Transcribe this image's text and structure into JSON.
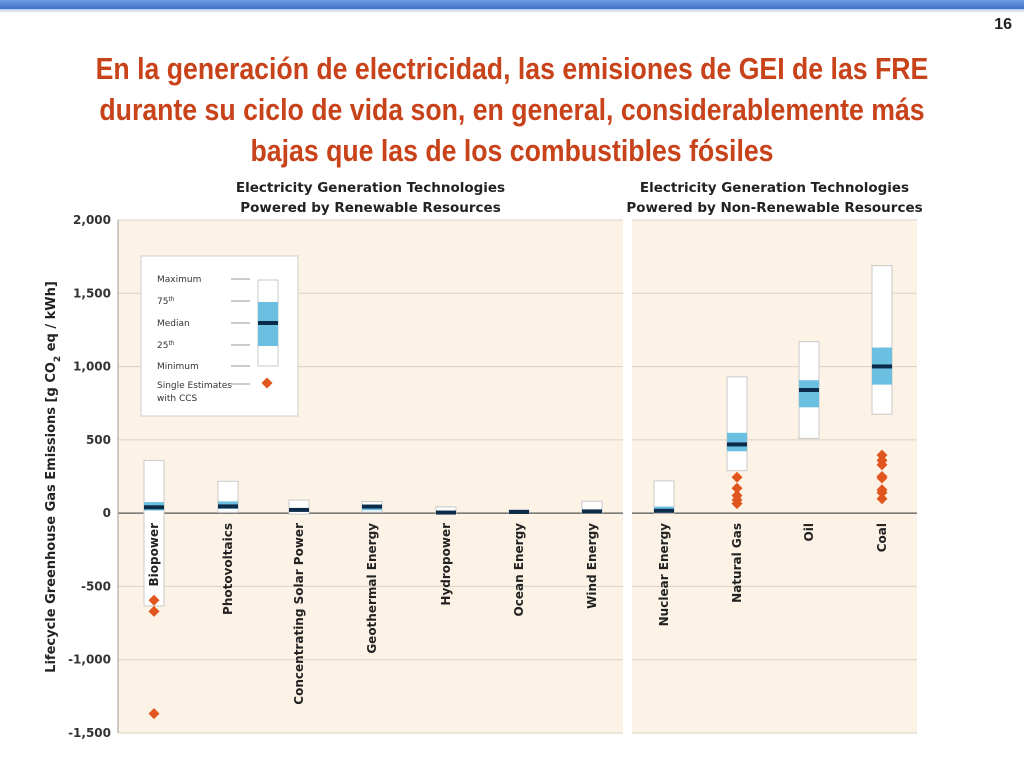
{
  "slide": {
    "number": "16",
    "title": "En la generación de electricidad, las emisiones de GEI de las FRE durante su ciclo de vida son, en general, considerablemente más bajas que las de los combustibles fósiles"
  },
  "colors": {
    "accent": "#c8421a",
    "panel_background": "#fdf2e6",
    "iqr_box": "#6bbfe0",
    "median": "#0c2b48",
    "ccs_marker": "#e0561e"
  },
  "chart_data": {
    "type": "boxplot",
    "ylabel": "Lifecycle Greenhouse Gas Emissions [g CO2 eq / kWh]",
    "ylim": [
      -1500,
      2000
    ],
    "yticks": [
      "2,000",
      "1,500",
      "1,000",
      "500",
      "0",
      "-500",
      "-1,000",
      "-1,500"
    ],
    "yticks_values": [
      2000,
      1500,
      1000,
      500,
      0,
      -500,
      -1000,
      -1500
    ],
    "grid": true,
    "panels": [
      {
        "title_lines": [
          "Electricity Generation Technologies",
          "Powered by Renewable Resources"
        ],
        "categories": [
          {
            "name": "Biopower",
            "min": -633,
            "q1": 18,
            "median": 40,
            "q3": 75,
            "max": 360,
            "ccs_estimates": [
              -594,
              -670,
              -1368
            ]
          },
          {
            "name": "Photovoltaics",
            "min": 5,
            "q1": 29,
            "median": 46,
            "q3": 80,
            "max": 217,
            "ccs_estimates": []
          },
          {
            "name": "Concentrating Solar Power",
            "min": -7,
            "q1": 14,
            "median": 22,
            "q3": 32,
            "max": 89,
            "ccs_estimates": []
          },
          {
            "name": "Geothermal Energy",
            "min": 6,
            "q1": 20,
            "median": 45,
            "q3": 57,
            "max": 79,
            "ccs_estimates": []
          },
          {
            "name": "Hydropower",
            "min": 0,
            "q1": 3,
            "median": 4,
            "q3": 7,
            "max": 43,
            "ccs_estimates": []
          },
          {
            "name": "Ocean Energy",
            "min": 2,
            "q1": 6,
            "median": 8,
            "q3": 9,
            "max": 23,
            "ccs_estimates": []
          },
          {
            "name": "Wind Energy",
            "min": 2,
            "q1": 8,
            "median": 12,
            "q3": 20,
            "max": 81,
            "ccs_estimates": []
          }
        ]
      },
      {
        "title_lines": [
          "Electricity Generation Technologies",
          "Powered by Non-Renewable Resources"
        ],
        "categories": [
          {
            "name": "Nuclear Energy",
            "min": 1,
            "q1": 8,
            "median": 16,
            "q3": 45,
            "max": 220,
            "ccs_estimates": []
          },
          {
            "name": "Natural Gas",
            "min": 290,
            "q1": 422,
            "median": 469,
            "q3": 548,
            "max": 930,
            "ccs_estimates": [
              65,
              90,
              120,
              170,
              245
            ]
          },
          {
            "name": "Oil",
            "min": 510,
            "q1": 722,
            "median": 840,
            "q3": 907,
            "max": 1170,
            "ccs_estimates": []
          },
          {
            "name": "Coal",
            "min": 675,
            "q1": 877,
            "median": 1001,
            "q3": 1130,
            "max": 1689,
            "ccs_estimates": [
              98,
              140,
              160,
              240,
              250,
              330,
              360,
              396
            ]
          }
        ]
      }
    ],
    "legend": {
      "placement": "top-left",
      "labels": {
        "maximum": "Maximum",
        "q3": "75th",
        "median": "Median",
        "q1": "25th",
        "minimum": "Minimum",
        "ccs_line1": "Single Estimates",
        "ccs_line2": "with CCS"
      }
    }
  }
}
